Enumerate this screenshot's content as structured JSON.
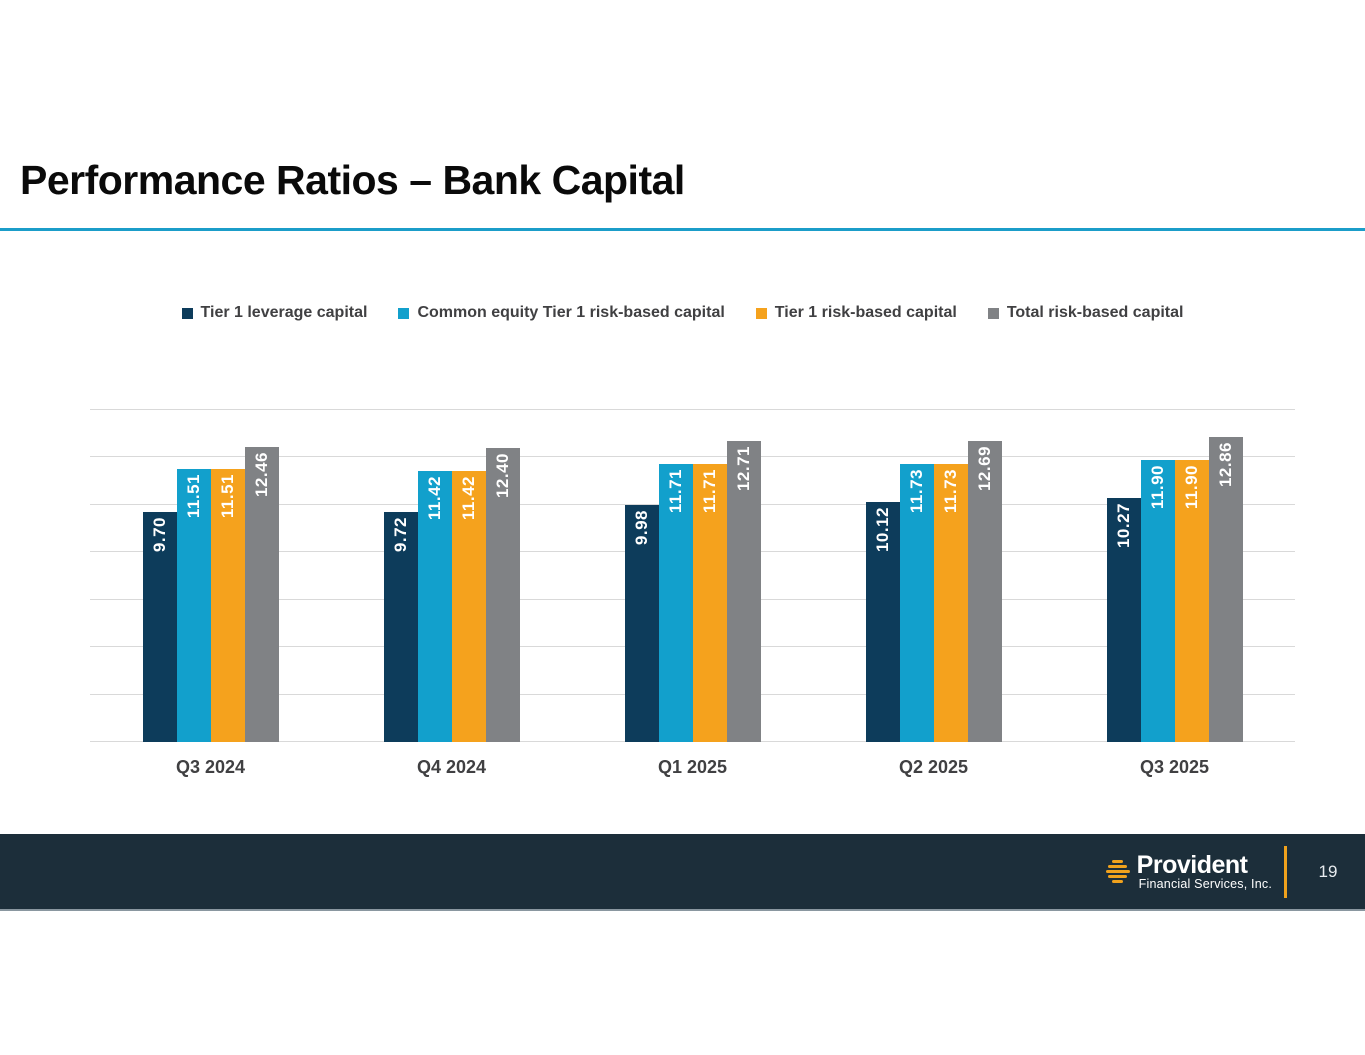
{
  "slide": {
    "title": "Performance Ratios – Bank Capital"
  },
  "accent_colors": {
    "title_rule": "#1b9dc9",
    "footer_background": "#1c2e3a",
    "logo_orange": "#f0a21d"
  },
  "chart_data": {
    "type": "bar",
    "title": "",
    "xlabel": "",
    "ylabel": "",
    "categories": [
      "Q3 2024",
      "Q4 2024",
      "Q1 2025",
      "Q2 2025",
      "Q3 2025"
    ],
    "series": [
      {
        "name": "Tier 1 leverage capital",
        "color": "#0d3c5b",
        "values": [
          9.7,
          9.72,
          9.98,
          10.12,
          10.27
        ]
      },
      {
        "name": "Common equity Tier 1 risk-based capital",
        "color": "#12a0cc",
        "values": [
          11.51,
          11.42,
          11.71,
          11.73,
          11.9
        ]
      },
      {
        "name": "Tier 1 risk-based capital",
        "color": "#f5a21d",
        "values": [
          11.51,
          11.42,
          11.71,
          11.73,
          11.9
        ]
      },
      {
        "name": "Total risk-based capital",
        "color": "#808285",
        "values": [
          12.46,
          12.4,
          12.71,
          12.69,
          12.86
        ]
      }
    ],
    "ylim": [
      0,
      14
    ],
    "gridline_step": 2,
    "grid": true,
    "y_axis_labels_visible": false,
    "legend_position": "top",
    "value_labels": "inside-top-rotated, 2 decimal places, white bold"
  },
  "footer": {
    "brand": "Provident",
    "brand_subtitle": "Financial Services, Inc.",
    "page_number": "19"
  }
}
